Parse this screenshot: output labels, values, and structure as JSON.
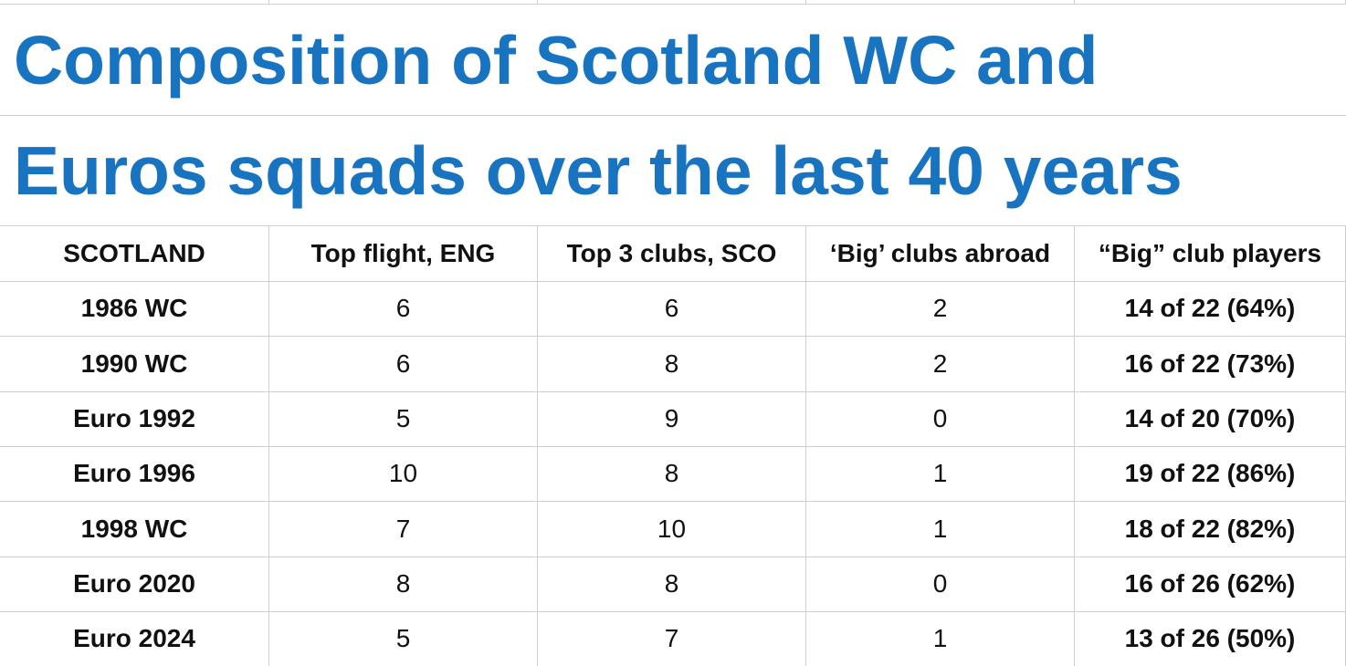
{
  "title_lines": [
    "Composition of Scotland WC and",
    "Euros squads over the last 40 years"
  ],
  "table": {
    "header": [
      "SCOTLAND",
      "Top flight, ENG",
      "Top 3 clubs, SCO",
      "‘Big’ clubs abroad",
      "“Big” club players"
    ],
    "rows": [
      [
        "1986 WC",
        6,
        6,
        2,
        "14 of 22 (64%)"
      ],
      [
        "1990 WC",
        6,
        8,
        2,
        "16 of 22 (73%)"
      ],
      [
        "Euro 1992",
        5,
        9,
        0,
        "14 of 20 (70%)"
      ],
      [
        "Euro 1996",
        10,
        8,
        1,
        "19 of 22 (86%)"
      ],
      [
        "1998 WC",
        7,
        10,
        1,
        "18 of 22 (82%)"
      ],
      [
        "Euro 2020",
        8,
        8,
        0,
        "16 of 26 (62%)"
      ],
      [
        "Euro 2024",
        5,
        7,
        1,
        "13 of 26 (50%)"
      ]
    ]
  }
}
